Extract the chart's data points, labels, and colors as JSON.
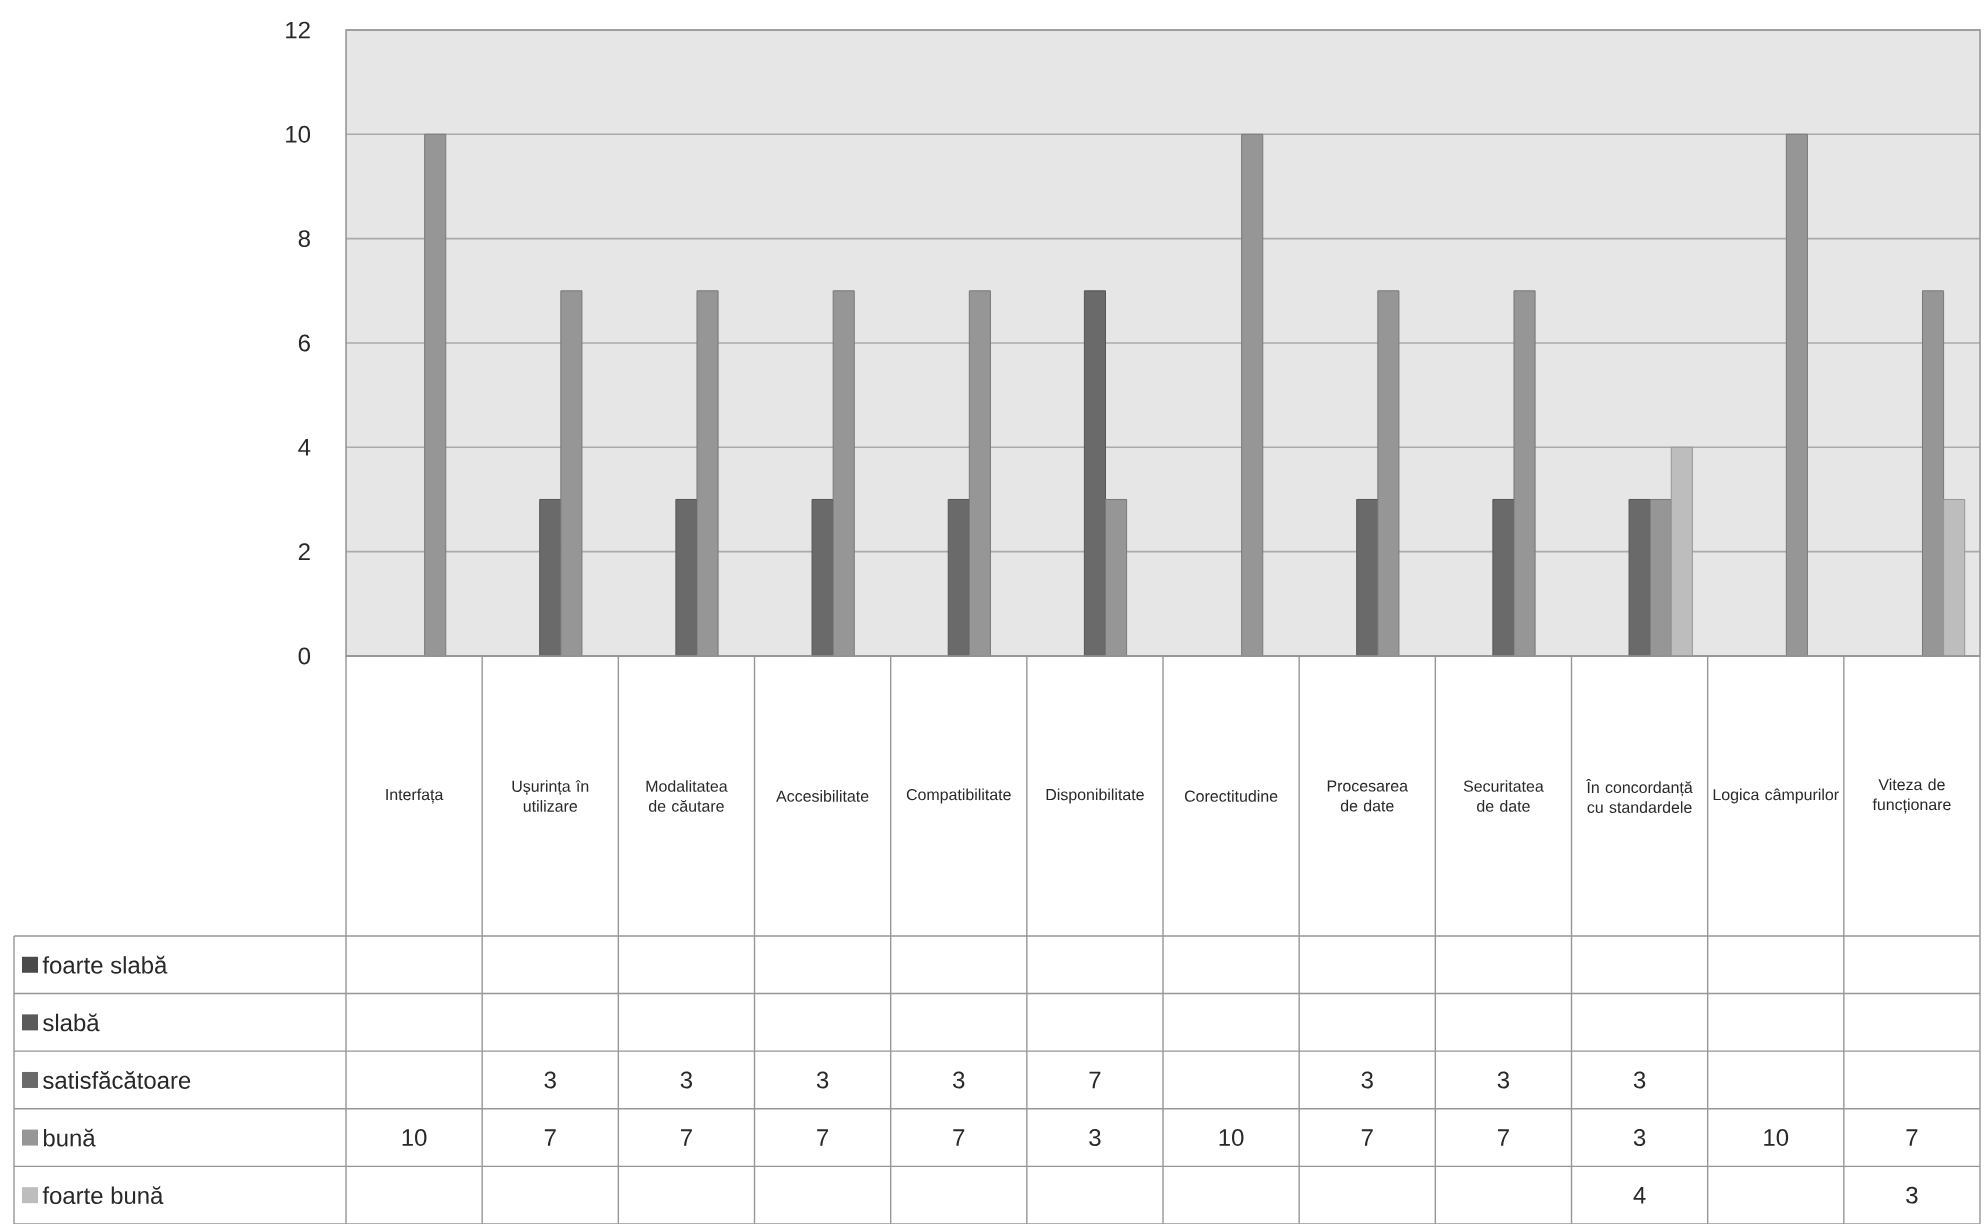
{
  "chart_data": {
    "type": "bar",
    "categories": [
      "Interfața",
      "Ușurința în utilizare",
      "Modalitatea de căutare",
      "Accesibilitate",
      "Compatibilitate",
      "Disponibilitate",
      "Corectitudine",
      "Procesarea de date",
      "Securitatea de date",
      "În concordanță cu standardele",
      "Logica câmpurilor",
      "Viteza de funcționare"
    ],
    "series": [
      {
        "name": "foarte slabă",
        "color": "#4a4a4a",
        "values": [
          null,
          null,
          null,
          null,
          null,
          null,
          null,
          null,
          null,
          null,
          null,
          null
        ]
      },
      {
        "name": "slabă",
        "color": "#5a5a5a",
        "values": [
          null,
          null,
          null,
          null,
          null,
          null,
          null,
          null,
          null,
          null,
          null,
          null
        ]
      },
      {
        "name": "satisfăcătoare",
        "color": "#6a6a6a",
        "values": [
          null,
          3,
          3,
          3,
          3,
          7,
          null,
          3,
          3,
          3,
          null,
          null
        ]
      },
      {
        "name": "bună",
        "color": "#969696",
        "values": [
          10,
          7,
          7,
          7,
          7,
          3,
          10,
          7,
          7,
          3,
          10,
          7
        ]
      },
      {
        "name": "foarte bună",
        "color": "#bdbdbd",
        "values": [
          null,
          null,
          null,
          null,
          null,
          null,
          null,
          null,
          null,
          4,
          null,
          3
        ]
      }
    ],
    "ylim": [
      0,
      12
    ],
    "yticks": [
      0,
      2,
      4,
      6,
      8,
      10,
      12
    ],
    "grid": "y",
    "legend": "bottom",
    "data_labels": true
  }
}
